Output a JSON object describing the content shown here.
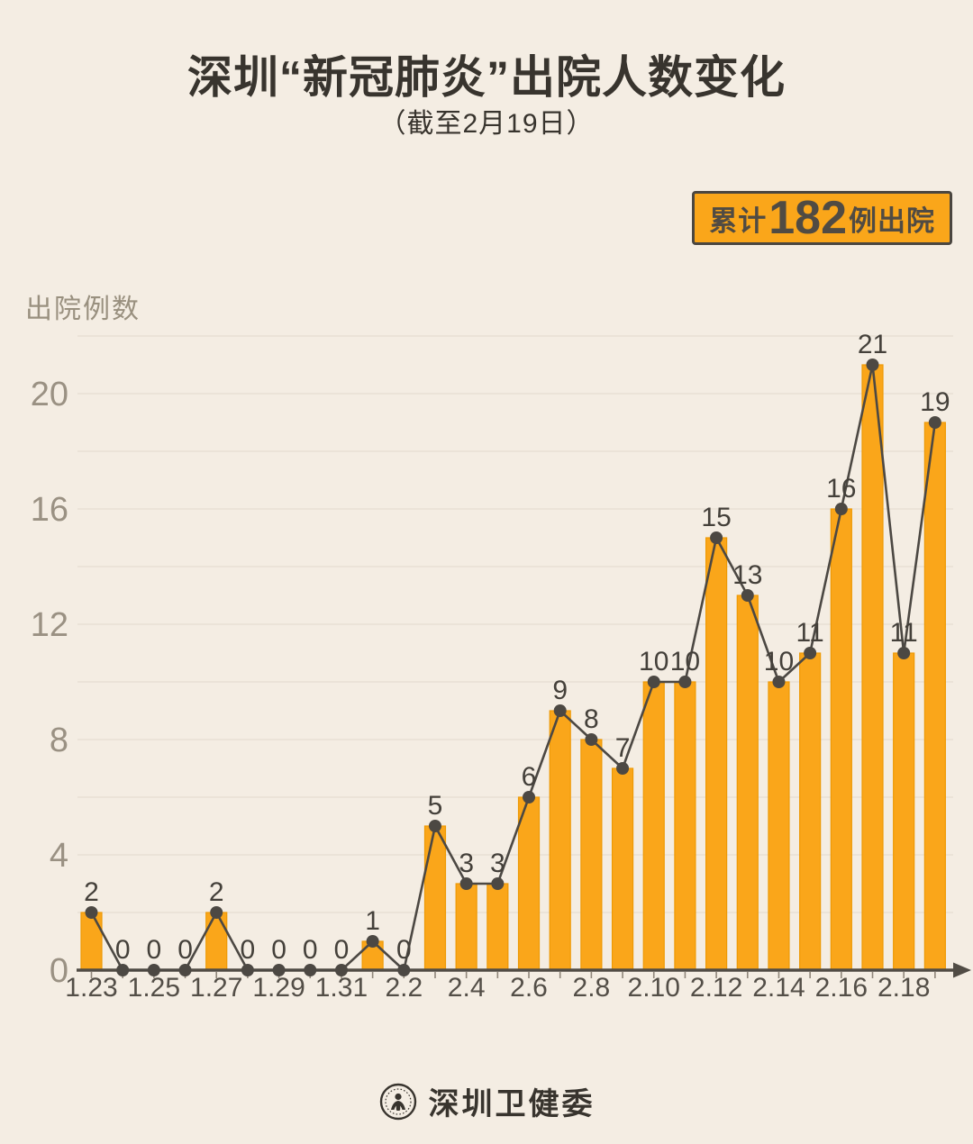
{
  "title": "深圳“新冠肺炎”出院人数变化",
  "subtitle": "（截至2月19日）",
  "badge": {
    "prefix": "累计",
    "number": "182",
    "suffix": "例出院"
  },
  "y_axis_title": "出院例数",
  "footer": {
    "org": "深圳卫健委",
    "logo_icon": "health-commission-emblem-icon"
  },
  "colors": {
    "background": "#F4EDE3",
    "bar": "#FAA61A",
    "bar_border": "#EE9A05",
    "line": "#4C4843",
    "dot": "#4C4843",
    "value_label": "#44403A",
    "axis": "#514C45",
    "axis_tick": "#8F867A",
    "grid": "#E8E0D4",
    "y_tick_label": "#9A9183",
    "x_tick_label": "#534E47",
    "badge_bg": "#FAA61A",
    "badge_border": "#4A4640"
  },
  "chart_data": {
    "type": "bar",
    "line_overlay": true,
    "title": "深圳“新冠肺炎”出院人数变化",
    "subtitle": "（截至2月19日）",
    "xlabel": "",
    "ylabel": "出院例数",
    "categories": [
      "1.23",
      "1.24",
      "1.25",
      "1.26",
      "1.27",
      "1.28",
      "1.29",
      "1.30",
      "1.31",
      "2.1",
      "2.2",
      "2.3",
      "2.4",
      "2.5",
      "2.6",
      "2.7",
      "2.8",
      "2.9",
      "2.10",
      "2.11",
      "2.12",
      "2.13",
      "2.14",
      "2.15",
      "2.16",
      "2.17",
      "2.18",
      "2.19"
    ],
    "values": [
      2,
      0,
      0,
      0,
      2,
      0,
      0,
      0,
      0,
      1,
      0,
      5,
      3,
      3,
      6,
      9,
      8,
      7,
      10,
      10,
      15,
      13,
      10,
      11,
      16,
      21,
      11,
      19
    ],
    "x_tick_labels": [
      "1.23",
      "1.25",
      "1.27",
      "1.29",
      "1.31",
      "2.2",
      "2.4",
      "2.6",
      "2.8",
      "2.10",
      "2.12",
      "2.14",
      "2.16",
      "2.18"
    ],
    "ylim": [
      0,
      22
    ],
    "ytick_values": [
      0,
      4,
      8,
      12,
      16,
      20
    ],
    "grid_step": 2,
    "grid": true,
    "data_labels": true,
    "legend": "none",
    "total_discharged": 182
  }
}
